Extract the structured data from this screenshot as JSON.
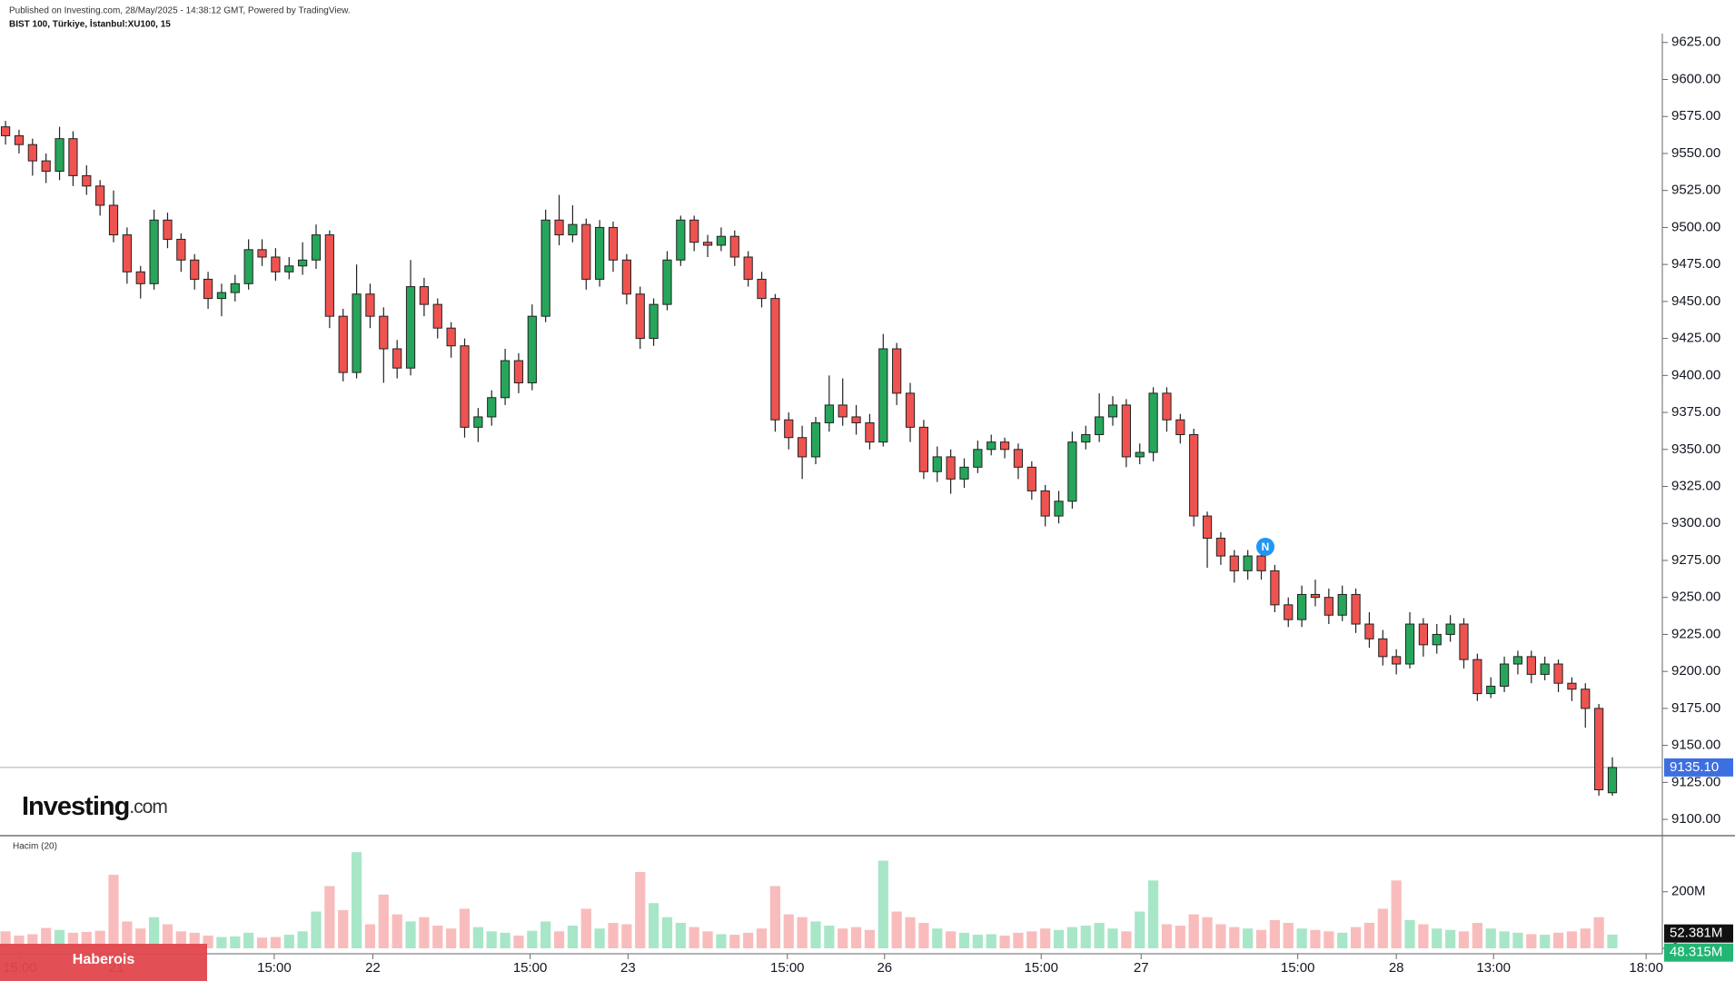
{
  "header": {
    "published": "Published on Investing.com, 28/May/2025 - 14:38:12 GMT, Powered by TradingView.",
    "symbol": "BIST 100, Türkiye, İstanbul:XU100, 15"
  },
  "logo": {
    "brand": "Investing",
    "suffix": ".com"
  },
  "watermark": "Haberois",
  "chart_data": [
    {
      "type": "candlestick",
      "up_color": "#26a65b",
      "down_color": "#ef5350",
      "open": [
        9568,
        9562,
        9556,
        9545,
        9538,
        9560,
        9535,
        9528,
        9515,
        9495,
        9470,
        9462,
        9505,
        9492,
        9478,
        9465,
        9452,
        9456,
        9462,
        9485,
        9480,
        9470,
        9474,
        9478,
        9495,
        9440,
        9402,
        9455,
        9440,
        9418,
        9405,
        9460,
        9448,
        9432,
        9420,
        9365,
        9372,
        9385,
        9410,
        9395,
        9440,
        9505,
        9495,
        9502,
        9465,
        9500,
        9478,
        9455,
        9425,
        9448,
        9478,
        9505,
        9490,
        9488,
        9494,
        9480,
        9465,
        9452,
        9370,
        9358,
        9345,
        9368,
        9380,
        9372,
        9368,
        9355,
        9418,
        9388,
        9365,
        9335,
        9345,
        9330,
        9338,
        9350,
        9355,
        9350,
        9338,
        9322,
        9305,
        9315,
        9355,
        9360,
        9372,
        9380,
        9345,
        9348,
        9388,
        9370,
        9360,
        9305,
        9290,
        9278,
        9268,
        9278,
        9268,
        9245,
        9235,
        9252,
        9250,
        9238,
        9252,
        9232,
        9222,
        9210,
        9205,
        9232,
        9218,
        9225,
        9232,
        9208,
        9185,
        9190,
        9205,
        9210,
        9198,
        9205,
        9192,
        9188,
        9175,
        9118
      ],
      "high": [
        9572,
        9566,
        9560,
        9550,
        9568,
        9565,
        9542,
        9532,
        9525,
        9500,
        9474,
        9512,
        9510,
        9496,
        9482,
        9470,
        9462,
        9468,
        9492,
        9492,
        9486,
        9480,
        9490,
        9502,
        9498,
        9445,
        9475,
        9462,
        9446,
        9424,
        9478,
        9466,
        9452,
        9436,
        9425,
        9378,
        9390,
        9418,
        9415,
        9448,
        9512,
        9522,
        9515,
        9506,
        9505,
        9504,
        9482,
        9460,
        9452,
        9484,
        9508,
        9508,
        9495,
        9500,
        9498,
        9484,
        9470,
        9455,
        9375,
        9366,
        9372,
        9400,
        9398,
        9380,
        9374,
        9428,
        9422,
        9395,
        9370,
        9352,
        9350,
        9344,
        9356,
        9360,
        9358,
        9354,
        9342,
        9326,
        9322,
        9362,
        9366,
        9388,
        9386,
        9384,
        9354,
        9392,
        9392,
        9374,
        9364,
        9308,
        9294,
        9282,
        9282,
        9284,
        9272,
        9250,
        9258,
        9262,
        9256,
        9258,
        9256,
        9240,
        9228,
        9215,
        9240,
        9236,
        9232,
        9238,
        9236,
        9212,
        9196,
        9210,
        9214,
        9214,
        9210,
        9208,
        9196,
        9192,
        9178,
        9142
      ],
      "low": [
        9556,
        9550,
        9535,
        9530,
        9532,
        9528,
        9522,
        9508,
        9490,
        9462,
        9452,
        9458,
        9486,
        9470,
        9458,
        9445,
        9440,
        9450,
        9458,
        9474,
        9464,
        9465,
        9468,
        9472,
        9432,
        9396,
        9398,
        9432,
        9395,
        9398,
        9400,
        9440,
        9425,
        9412,
        9358,
        9355,
        9366,
        9380,
        9388,
        9390,
        9436,
        9488,
        9490,
        9458,
        9460,
        9470,
        9448,
        9418,
        9420,
        9444,
        9474,
        9484,
        9480,
        9484,
        9474,
        9460,
        9446,
        9362,
        9350,
        9330,
        9340,
        9362,
        9366,
        9360,
        9350,
        9352,
        9380,
        9355,
        9330,
        9328,
        9320,
        9324,
        9334,
        9346,
        9344,
        9330,
        9316,
        9298,
        9300,
        9310,
        9350,
        9355,
        9366,
        9338,
        9340,
        9342,
        9362,
        9354,
        9298,
        9270,
        9272,
        9260,
        9262,
        9262,
        9240,
        9230,
        9230,
        9244,
        9232,
        9234,
        9226,
        9216,
        9204,
        9198,
        9202,
        9210,
        9212,
        9220,
        9202,
        9180,
        9182,
        9186,
        9198,
        9192,
        9194,
        9186,
        9180,
        9162,
        9116,
        9116
      ],
      "close": [
        9562,
        9556,
        9545,
        9538,
        9560,
        9535,
        9528,
        9515,
        9495,
        9470,
        9462,
        9505,
        9492,
        9478,
        9465,
        9452,
        9456,
        9462,
        9485,
        9480,
        9470,
        9474,
        9478,
        9495,
        9440,
        9402,
        9455,
        9440,
        9418,
        9405,
        9460,
        9448,
        9432,
        9420,
        9365,
        9372,
        9385,
        9410,
        9395,
        9440,
        9505,
        9495,
        9502,
        9465,
        9500,
        9478,
        9455,
        9425,
        9448,
        9478,
        9505,
        9490,
        9488,
        9494,
        9480,
        9465,
        9452,
        9370,
        9358,
        9345,
        9368,
        9380,
        9372,
        9368,
        9355,
        9418,
        9388,
        9365,
        9335,
        9345,
        9330,
        9338,
        9350,
        9355,
        9350,
        9338,
        9322,
        9305,
        9315,
        9355,
        9360,
        9372,
        9380,
        9345,
        9348,
        9388,
        9370,
        9360,
        9305,
        9290,
        9278,
        9268,
        9278,
        9268,
        9245,
        9235,
        9252,
        9250,
        9238,
        9252,
        9232,
        9222,
        9210,
        9205,
        9232,
        9218,
        9225,
        9232,
        9208,
        9185,
        9190,
        9205,
        9210,
        9198,
        9205,
        9192,
        9188,
        9175,
        9120,
        9135.1
      ],
      "xlim": [
        -0.41,
        122.7
      ],
      "xticks": [
        {
          "value": 1.06,
          "label": "15:00"
        },
        {
          "value": 8.2,
          "label": "21"
        },
        {
          "value": 19.9,
          "label": "15:00"
        },
        {
          "value": 27.2,
          "label": "22"
        },
        {
          "value": 38.85,
          "label": "15:00"
        },
        {
          "value": 46.1,
          "label": "23"
        },
        {
          "value": 57.9,
          "label": "15:00"
        },
        {
          "value": 65.1,
          "label": "26"
        },
        {
          "value": 76.7,
          "label": "15:00"
        },
        {
          "value": 84.1,
          "label": "27"
        },
        {
          "value": 95.7,
          "label": "15:00"
        },
        {
          "value": 103,
          "label": "28"
        },
        {
          "value": 110.2,
          "label": "13:00"
        },
        {
          "value": 121.5,
          "label": "18:00"
        }
      ],
      "ylim": [
        9089,
        9631
      ],
      "yticks": [
        {
          "value": 9100,
          "label": "9100.00"
        },
        {
          "value": 9125,
          "label": "9125.00"
        },
        {
          "value": 9150,
          "label": "9150.00"
        },
        {
          "value": 9175,
          "label": "9175.00"
        },
        {
          "value": 9200,
          "label": "9200.00"
        },
        {
          "value": 9225,
          "label": "9225.00"
        },
        {
          "value": 9250,
          "label": "9250.00"
        },
        {
          "value": 9275,
          "label": "9275.00"
        },
        {
          "value": 9300,
          "label": "9300.00"
        },
        {
          "value": 9325,
          "label": "9325.00"
        },
        {
          "value": 9350,
          "label": "9350.00"
        },
        {
          "value": 9375,
          "label": "9375.00"
        },
        {
          "value": 9400,
          "label": "9400.00"
        },
        {
          "value": 9425,
          "label": "9425.00"
        },
        {
          "value": 9450,
          "label": "9450.00"
        },
        {
          "value": 9475,
          "label": "9475.00"
        },
        {
          "value": 9500,
          "label": "9500.00"
        },
        {
          "value": 9525,
          "label": "9525.00"
        },
        {
          "value": 9550,
          "label": "9550.00"
        },
        {
          "value": 9575,
          "label": "9575.00"
        },
        {
          "value": 9600,
          "label": "9600.00"
        },
        {
          "value": 9625,
          "label": "9625.00"
        }
      ],
      "last_price": {
        "value": 9135.1,
        "label": "9135.10"
      },
      "event_marker": "N"
    },
    {
      "type": "bar",
      "title": "Hacim (20)",
      "up_color": "#a8e6c8",
      "down_color": "#f9bcbc",
      "values": [
        60,
        45,
        50,
        72,
        65,
        55,
        58,
        62,
        260,
        95,
        70,
        110,
        85,
        60,
        55,
        45,
        40,
        42,
        55,
        38,
        40,
        48,
        60,
        130,
        220,
        135,
        340,
        85,
        190,
        120,
        95,
        110,
        80,
        70,
        140,
        75,
        60,
        55,
        45,
        62,
        95,
        60,
        80,
        140,
        70,
        90,
        85,
        270,
        160,
        110,
        90,
        75,
        60,
        50,
        48,
        55,
        70,
        220,
        120,
        110,
        95,
        80,
        70,
        75,
        65,
        310,
        130,
        110,
        90,
        70,
        60,
        55,
        48,
        50,
        45,
        55,
        60,
        70,
        65,
        75,
        80,
        90,
        70,
        60,
        130,
        240,
        85,
        80,
        120,
        110,
        85,
        75,
        70,
        65,
        100,
        90,
        70,
        65,
        60,
        55,
        75,
        90,
        140,
        240,
        100,
        85,
        70,
        65,
        60,
        90,
        70,
        60,
        55,
        50,
        48,
        55,
        60,
        70,
        110,
        48.315
      ],
      "ylim": [
        0,
        392
      ],
      "yticks": [
        0,
        {
          "value": 200,
          "label": "200M"
        }
      ],
      "ma_label": {
        "value": 52.381,
        "label": "52.381M"
      },
      "last_label": {
        "value": 48.315,
        "label": "48.315M"
      }
    }
  ]
}
